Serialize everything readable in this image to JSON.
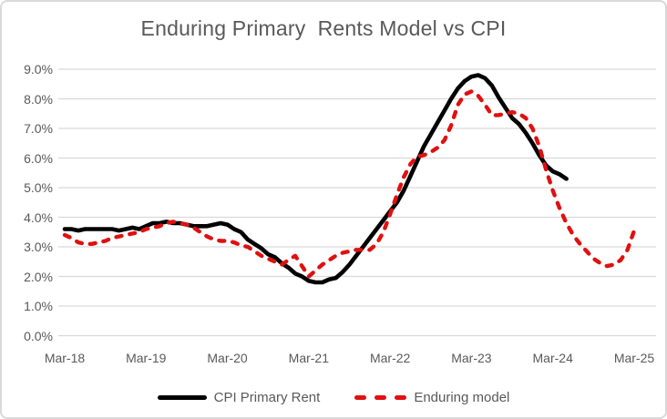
{
  "chart_data": {
    "type": "line",
    "title": "Enduring Primary  Rents Model vs CPI",
    "title_color": "#595959",
    "gridline_color": "#D9D9D9",
    "axis_label_color": "#595959",
    "grid": true,
    "legend_position": "bottom",
    "ylim": [
      0.0,
      9.0
    ],
    "y_tick_labels": [
      "9.0%",
      "8.0%",
      "7.0%",
      "6.0%",
      "5.0%",
      "4.0%",
      "3.0%",
      "2.0%",
      "1.0%",
      "0.0%"
    ],
    "x_tick_labels": [
      "Mar-18",
      "Mar-19",
      "Mar-20",
      "Mar-21",
      "Mar-22",
      "Mar-23",
      "Mar-24",
      "Mar-25"
    ],
    "x_unit": "monthly, Mar-2018 to Mar-2025, values in percent YoY",
    "series": [
      {
        "name": "CPI Primary Rent",
        "color": "#000000",
        "style": "solid",
        "start": "Mar-18",
        "end": "May-24",
        "values": [
          3.6,
          3.6,
          3.55,
          3.6,
          3.6,
          3.6,
          3.6,
          3.6,
          3.55,
          3.6,
          3.65,
          3.6,
          3.7,
          3.8,
          3.8,
          3.85,
          3.8,
          3.8,
          3.75,
          3.7,
          3.7,
          3.7,
          3.75,
          3.8,
          3.75,
          3.6,
          3.5,
          3.25,
          3.1,
          2.95,
          2.75,
          2.65,
          2.45,
          2.3,
          2.1,
          2.0,
          1.85,
          1.8,
          1.8,
          1.9,
          1.95,
          2.15,
          2.4,
          2.7,
          3.0,
          3.3,
          3.6,
          3.9,
          4.2,
          4.5,
          4.9,
          5.4,
          5.9,
          6.4,
          6.8,
          7.2,
          7.6,
          8.0,
          8.35,
          8.6,
          8.75,
          8.8,
          8.7,
          8.45,
          8.05,
          7.7,
          7.35,
          7.15,
          6.85,
          6.5,
          6.1,
          5.75,
          5.55,
          5.45,
          5.3
        ]
      },
      {
        "name": "Enduring model",
        "color": "#E01010",
        "style": "dashed",
        "start": "Mar-18",
        "end": "Mar-25",
        "values": [
          3.4,
          3.3,
          3.15,
          3.1,
          3.1,
          3.15,
          3.2,
          3.3,
          3.35,
          3.4,
          3.45,
          3.5,
          3.6,
          3.65,
          3.7,
          3.8,
          3.85,
          3.8,
          3.75,
          3.65,
          3.5,
          3.35,
          3.25,
          3.2,
          3.2,
          3.15,
          3.05,
          3.0,
          2.85,
          2.7,
          2.6,
          2.5,
          2.4,
          2.55,
          2.7,
          2.35,
          2.0,
          2.2,
          2.4,
          2.55,
          2.7,
          2.8,
          2.85,
          2.9,
          2.9,
          2.9,
          3.1,
          3.5,
          4.1,
          4.75,
          5.35,
          5.8,
          6.05,
          6.1,
          6.2,
          6.35,
          6.6,
          7.1,
          7.8,
          8.15,
          8.25,
          8.1,
          7.8,
          7.45,
          7.45,
          7.5,
          7.55,
          7.5,
          7.35,
          7.0,
          6.4,
          5.6,
          4.9,
          4.3,
          3.8,
          3.4,
          3.1,
          2.85,
          2.6,
          2.45,
          2.35,
          2.4,
          2.55,
          2.9,
          3.55
        ]
      }
    ]
  }
}
